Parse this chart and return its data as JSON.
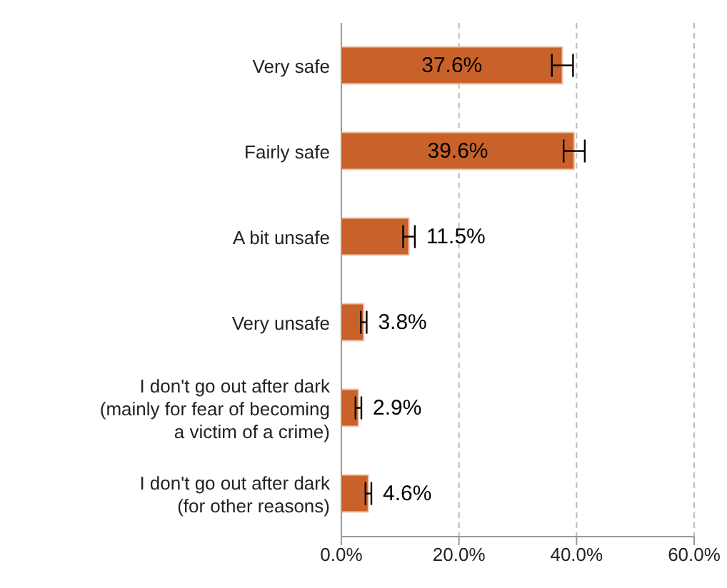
{
  "chart_data": {
    "type": "bar",
    "orientation": "horizontal",
    "categories": [
      "Very safe",
      "Fairly safe",
      "A bit unsafe",
      "Very unsafe",
      "I don't go out after dark (mainly for fear of becoming a victim of a crime)",
      "I don't go out after dark (for other reasons)"
    ],
    "values": [
      37.6,
      39.6,
      11.5,
      3.8,
      2.9,
      4.6
    ],
    "value_labels": [
      "37.6%",
      "39.6%",
      "11.5%",
      "3.8%",
      "2.9%",
      "4.6%"
    ],
    "errors": [
      1.8,
      1.8,
      1.0,
      0.5,
      0.5,
      0.5
    ],
    "color": "#c8622a",
    "xlim": [
      0,
      60
    ],
    "xticks": [
      {
        "value": 0,
        "label": "0.0%"
      },
      {
        "value": 20,
        "label": "20.0%"
      },
      {
        "value": 40,
        "label": "40.0%"
      },
      {
        "value": 60,
        "label": "60.0%"
      }
    ],
    "grid": "x"
  }
}
